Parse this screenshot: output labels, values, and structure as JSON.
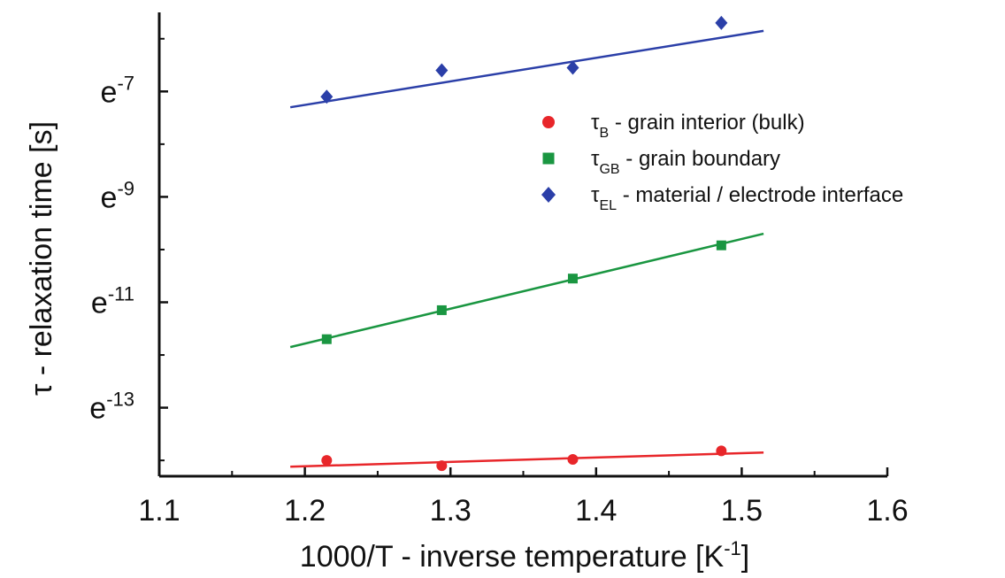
{
  "chart_data": {
    "type": "scatter",
    "xlabel": {
      "main": "1000/T - inverse temperature  [K",
      "sup": "-1",
      "end": "]"
    },
    "ylabel": "τ - relaxation time [s]",
    "xlim": [
      1.1,
      1.6
    ],
    "ylim_ln": [
      -14.3,
      -5.5
    ],
    "y_scale": "ln",
    "x_ticks": [
      "1.1",
      "1.2",
      "1.3",
      "1.4",
      "1.5",
      "1.6"
    ],
    "y_ticks": [
      {
        "base": "e",
        "exp": "-7",
        "ln": -7
      },
      {
        "base": "e",
        "exp": "-9",
        "ln": -9
      },
      {
        "base": "e",
        "exp": "-11",
        "ln": -11
      },
      {
        "base": "e",
        "exp": "-13",
        "ln": -13
      }
    ],
    "grid": false,
    "legend_position": "upper-right",
    "series": [
      {
        "legend": {
          "symbol": "τ",
          "sub": "B",
          "text": " - grain interior (bulk)"
        },
        "marker": "circle",
        "color": "#e8262a",
        "x": [
          1.215,
          1.294,
          1.384,
          1.486
        ],
        "ln_tau": [
          -14.0,
          -14.1,
          -13.98,
          -13.82
        ],
        "fit": {
          "x": [
            1.19,
            1.515
          ],
          "ln_tau": [
            -14.12,
            -13.85
          ]
        }
      },
      {
        "legend": {
          "symbol": "τ",
          "sub": "GB",
          "text": " - grain boundary"
        },
        "marker": "square",
        "color": "#1a9641",
        "x": [
          1.215,
          1.294,
          1.384,
          1.486
        ],
        "ln_tau": [
          -11.7,
          -11.15,
          -10.55,
          -9.92
        ],
        "fit": {
          "x": [
            1.19,
            1.515
          ],
          "ln_tau": [
            -11.85,
            -9.7
          ]
        }
      },
      {
        "legend": {
          "symbol": "τ",
          "sub": "EL",
          "text": " - material / electrode interface"
        },
        "marker": "diamond",
        "color": "#2b3fa8",
        "x": [
          1.215,
          1.294,
          1.384,
          1.486
        ],
        "ln_tau": [
          -7.1,
          -6.6,
          -6.55,
          -5.7
        ],
        "fit": {
          "x": [
            1.19,
            1.515
          ],
          "ln_tau": [
            -7.3,
            -5.85
          ]
        }
      }
    ]
  }
}
